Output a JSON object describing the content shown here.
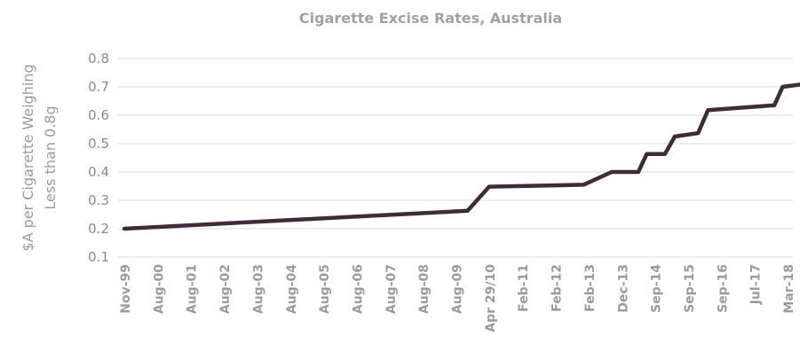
{
  "colors": {
    "series": "#3f2a38",
    "grid": "#d9d9d9",
    "text": "#9b9b9b"
  },
  "chart_data": {
    "type": "line",
    "title": "Cigarette Excise Rates, Australia",
    "xlabel": "",
    "ylabel_lines": [
      "$A per Cigarette Weighing",
      "Less than 0.8g"
    ],
    "ylim": [
      0.1,
      0.8
    ],
    "yticks": [
      "0.1",
      "0.2",
      "0.3",
      "0.4",
      "0.5",
      "0.6",
      "0.7",
      "0.8"
    ],
    "grid": true,
    "legend": "none",
    "x_tick_labels": [
      "Nov-99",
      "Aug-00",
      "Aug-01",
      "Aug-02",
      "Aug-03",
      "Aug-04",
      "Aug-05",
      "Aug-06",
      "Aug-07",
      "Aug-08",
      "Aug-09",
      "Apr 29/10",
      "Feb-11",
      "Feb-12",
      "Feb-13",
      "Dec-13",
      "Sep-14",
      "Sep-15",
      "Sep-16",
      "Jul-17",
      "Mar-18"
    ],
    "series": [
      {
        "x": [
          "Nov-99",
          "Aug-09",
          "Apr 29/10",
          "Feb-13",
          "Dec-13",
          "Sep-14",
          "Sep-15",
          "Sep-16",
          "Jul-17",
          "Mar-18"
        ],
        "points": [
          {
            "x": 0,
            "y": 0.2
          },
          {
            "x": 10.35,
            "y": 0.263
          },
          {
            "x": 11,
            "y": 0.348
          },
          {
            "x": 13.85,
            "y": 0.355
          },
          {
            "x": 14.7,
            "y": 0.4
          },
          {
            "x": 15.5,
            "y": 0.4
          },
          {
            "x": 15.75,
            "y": 0.463
          },
          {
            "x": 16.3,
            "y": 0.463
          },
          {
            "x": 16.6,
            "y": 0.525
          },
          {
            "x": 17.3,
            "y": 0.537
          },
          {
            "x": 17.6,
            "y": 0.618
          },
          {
            "x": 19.6,
            "y": 0.635
          },
          {
            "x": 19.85,
            "y": 0.7
          },
          {
            "x": 20.6,
            "y": 0.712
          }
        ]
      }
    ]
  }
}
